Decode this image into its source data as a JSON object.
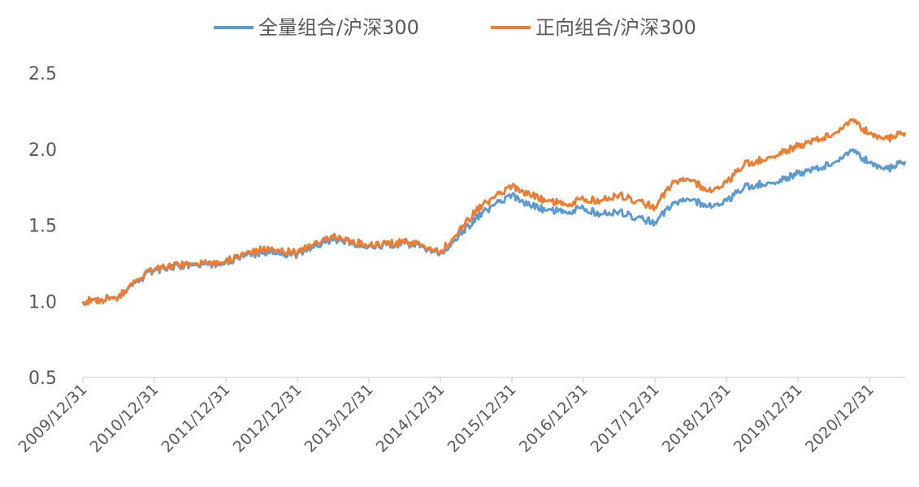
{
  "chart_data": {
    "type": "line",
    "title": "",
    "xlabel": "",
    "ylabel": "",
    "ylim": [
      0.5,
      2.5
    ],
    "yticks": [
      "0.5",
      "1.0",
      "1.5",
      "2.0",
      "2.5"
    ],
    "xlim": [
      "2009-12-31",
      "2021-06-30"
    ],
    "x_tick_labels": [
      "2009/12/31",
      "2010/12/31",
      "2011/12/31",
      "2012/12/31",
      "2013/12/31",
      "2014/12/31",
      "2015/12/31",
      "2016/12/31",
      "2017/12/31",
      "2018/12/31",
      "2019/12/31",
      "2020/12/31"
    ],
    "grid": false,
    "legend_position": "top-center",
    "series": [
      {
        "name": "全量组合/沪深300",
        "color": "#5B9BD5",
        "points": [
          [
            "2009-12-31",
            1.0
          ],
          [
            "2010-03-31",
            1.01
          ],
          [
            "2010-06-30",
            1.03
          ],
          [
            "2010-09-30",
            1.13
          ],
          [
            "2010-12-31",
            1.2
          ],
          [
            "2011-03-31",
            1.23
          ],
          [
            "2011-06-30",
            1.24
          ],
          [
            "2011-09-30",
            1.24
          ],
          [
            "2011-12-31",
            1.26
          ],
          [
            "2012-03-31",
            1.29
          ],
          [
            "2012-06-30",
            1.32
          ],
          [
            "2012-09-30",
            1.31
          ],
          [
            "2012-12-31",
            1.31
          ],
          [
            "2013-03-31",
            1.37
          ],
          [
            "2013-06-30",
            1.4
          ],
          [
            "2013-09-30",
            1.39
          ],
          [
            "2013-12-31",
            1.36
          ],
          [
            "2014-03-31",
            1.37
          ],
          [
            "2014-06-30",
            1.38
          ],
          [
            "2014-09-30",
            1.36
          ],
          [
            "2014-12-31",
            1.32
          ],
          [
            "2015-03-31",
            1.42
          ],
          [
            "2015-06-30",
            1.55
          ],
          [
            "2015-09-30",
            1.63
          ],
          [
            "2015-12-31",
            1.7
          ],
          [
            "2016-03-31",
            1.63
          ],
          [
            "2016-06-30",
            1.6
          ],
          [
            "2016-09-30",
            1.59
          ],
          [
            "2016-12-31",
            1.61
          ],
          [
            "2017-03-31",
            1.57
          ],
          [
            "2017-06-30",
            1.59
          ],
          [
            "2017-09-30",
            1.55
          ],
          [
            "2017-12-31",
            1.52
          ],
          [
            "2018-03-31",
            1.65
          ],
          [
            "2018-06-30",
            1.66
          ],
          [
            "2018-09-30",
            1.63
          ],
          [
            "2018-12-31",
            1.66
          ],
          [
            "2019-03-31",
            1.75
          ],
          [
            "2019-06-30",
            1.77
          ],
          [
            "2019-09-30",
            1.8
          ],
          [
            "2019-12-31",
            1.84
          ],
          [
            "2020-03-31",
            1.87
          ],
          [
            "2020-06-30",
            1.91
          ],
          [
            "2020-09-30",
            1.99
          ],
          [
            "2020-12-31",
            1.91
          ],
          [
            "2021-03-31",
            1.87
          ],
          [
            "2021-06-30",
            1.92
          ]
        ]
      },
      {
        "name": "正向组合/沪深300",
        "color": "#ED7D31",
        "points": [
          [
            "2009-12-31",
            1.0
          ],
          [
            "2010-03-31",
            1.01
          ],
          [
            "2010-06-30",
            1.03
          ],
          [
            "2010-09-30",
            1.14
          ],
          [
            "2010-12-31",
            1.21
          ],
          [
            "2011-03-31",
            1.24
          ],
          [
            "2011-06-30",
            1.25
          ],
          [
            "2011-09-30",
            1.25
          ],
          [
            "2011-12-31",
            1.27
          ],
          [
            "2012-03-31",
            1.3
          ],
          [
            "2012-06-30",
            1.34
          ],
          [
            "2012-09-30",
            1.33
          ],
          [
            "2012-12-31",
            1.32
          ],
          [
            "2013-03-31",
            1.39
          ],
          [
            "2013-06-30",
            1.42
          ],
          [
            "2013-09-30",
            1.4
          ],
          [
            "2013-12-31",
            1.37
          ],
          [
            "2014-03-31",
            1.38
          ],
          [
            "2014-06-30",
            1.39
          ],
          [
            "2014-09-30",
            1.37
          ],
          [
            "2014-12-31",
            1.33
          ],
          [
            "2015-03-31",
            1.45
          ],
          [
            "2015-06-30",
            1.6
          ],
          [
            "2015-09-30",
            1.68
          ],
          [
            "2015-12-31",
            1.76
          ],
          [
            "2016-03-31",
            1.7
          ],
          [
            "2016-06-30",
            1.66
          ],
          [
            "2016-09-30",
            1.64
          ],
          [
            "2016-12-31",
            1.67
          ],
          [
            "2017-03-31",
            1.66
          ],
          [
            "2017-06-30",
            1.7
          ],
          [
            "2017-09-30",
            1.66
          ],
          [
            "2017-12-31",
            1.62
          ],
          [
            "2018-03-31",
            1.79
          ],
          [
            "2018-06-30",
            1.79
          ],
          [
            "2018-09-30",
            1.73
          ],
          [
            "2018-12-31",
            1.78
          ],
          [
            "2019-03-31",
            1.9
          ],
          [
            "2019-06-30",
            1.93
          ],
          [
            "2019-09-30",
            1.98
          ],
          [
            "2019-12-31",
            2.02
          ],
          [
            "2020-03-31",
            2.06
          ],
          [
            "2020-06-30",
            2.1
          ],
          [
            "2020-09-30",
            2.19
          ],
          [
            "2020-12-31",
            2.1
          ],
          [
            "2021-03-31",
            2.07
          ],
          [
            "2021-06-30",
            2.11
          ]
        ]
      }
    ]
  }
}
